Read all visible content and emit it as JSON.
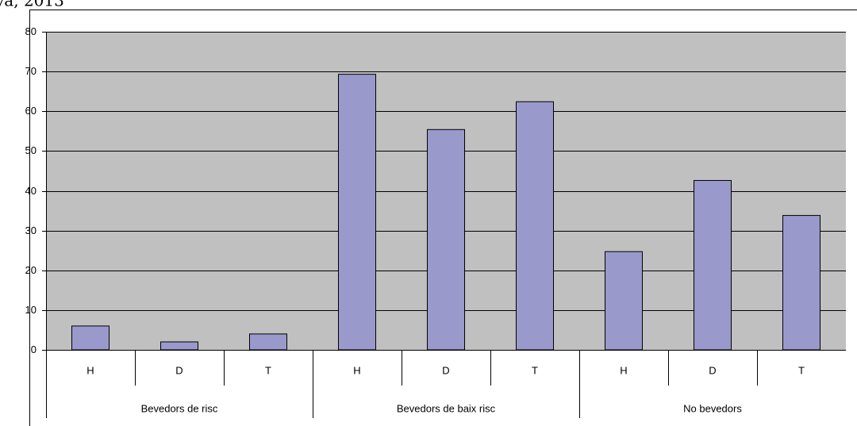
{
  "chart_data": {
    "type": "bar",
    "title": "ya, 2013",
    "categories": [
      "H",
      "D",
      "T",
      "H",
      "D",
      "T",
      "H",
      "D",
      "T"
    ],
    "groups": [
      "Bevedors de risc",
      "Bevedors de baix risc",
      "No bevedors"
    ],
    "values": [
      6,
      2,
      4,
      69.3,
      55.4,
      62.4,
      24.7,
      42.6,
      33.8
    ],
    "color": "#9999cc",
    "ylim": [
      0,
      80
    ],
    "yticks": [
      0,
      10,
      20,
      30,
      40,
      50,
      60,
      70,
      80
    ],
    "grid": true
  }
}
